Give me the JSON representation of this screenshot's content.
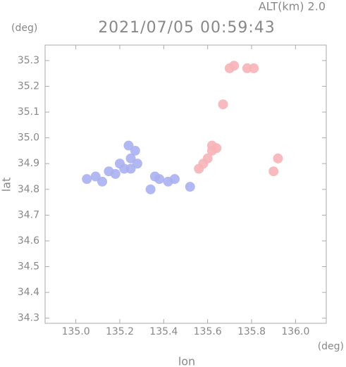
{
  "chart_data": {
    "type": "scatter",
    "title": "2021/07/05 00:59:43",
    "subtitle": "ALT(km) 2.0",
    "xlabel": "lon",
    "ylabel": "lat",
    "x_unit": "(deg)",
    "y_unit": "(deg)",
    "xlim": [
      134.86,
      136.14
    ],
    "ylim": [
      34.28,
      35.36
    ],
    "xticks": [
      {
        "value": 135.0,
        "label": "135.0"
      },
      135.2,
      135.4,
      135.6,
      135.8,
      {
        "value": 136.0,
        "label": "136.0"
      }
    ],
    "yticks": [
      34.3,
      34.4,
      34.5,
      34.6,
      34.7,
      34.8,
      34.9,
      {
        "value": 35.0,
        "label": "35.0"
      },
      35.1,
      35.2,
      35.3
    ],
    "series": [
      {
        "color": "#aab0f0",
        "x": [
          135.05,
          135.09,
          135.12,
          135.15,
          135.18,
          135.2,
          135.22,
          135.25,
          135.27,
          135.28,
          135.25,
          135.24,
          135.36,
          135.38,
          135.42,
          135.45,
          135.34,
          135.52
        ],
        "values": [
          34.84,
          34.85,
          34.83,
          34.87,
          34.86,
          34.9,
          34.88,
          34.92,
          34.95,
          34.9,
          34.88,
          34.97,
          34.85,
          34.84,
          34.83,
          34.84,
          34.8,
          34.81
        ]
      },
      {
        "color": "#f6b4b8",
        "x": [
          135.7,
          135.72,
          135.78,
          135.81,
          135.67,
          135.62,
          135.64,
          135.6,
          135.58,
          135.62,
          135.56,
          135.92,
          135.9
        ],
        "values": [
          35.27,
          35.28,
          35.27,
          35.27,
          35.13,
          34.95,
          34.96,
          34.92,
          34.9,
          34.97,
          34.88,
          34.92,
          34.87
        ]
      }
    ]
  }
}
